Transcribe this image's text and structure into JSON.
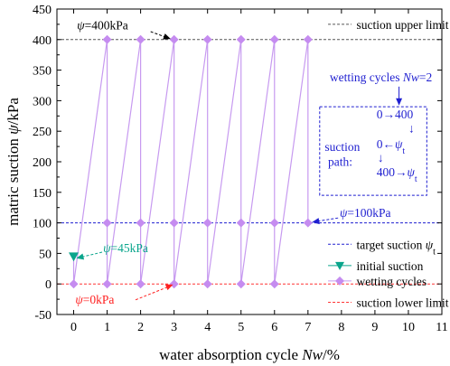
{
  "chart_data": {
    "type": "line",
    "xlabel_prefix": "water absorption cycle ",
    "xlabel_italic": "Nw",
    "xlabel_suffix": "/%",
    "ylabel_prefix": "matric suction ",
    "ylabel_italic": "ψ",
    "ylabel_suffix": "/kPa",
    "xlim": [
      -0.5,
      11
    ],
    "ylim": [
      -50,
      450
    ],
    "xticks": [
      0,
      1,
      2,
      3,
      4,
      5,
      6,
      7,
      8,
      9,
      10,
      11
    ],
    "yticks": [
      -50,
      0,
      50,
      100,
      150,
      200,
      250,
      300,
      350,
      400,
      450
    ],
    "reference_lines": [
      {
        "name": "suction upper limit",
        "y": 400,
        "color": "#555555"
      },
      {
        "name_prefix": "target suction ",
        "name_italic": "ψ",
        "name_sub": "t",
        "y": 100,
        "color": "#1f1fd0"
      },
      {
        "name": "suction lower limit",
        "y": 0,
        "color": "#ff3333"
      }
    ],
    "series": [
      {
        "name": "initial suction",
        "marker": "triangle-down",
        "color": "#0aa58c",
        "points": [
          [
            0,
            45
          ]
        ]
      },
      {
        "name": "wetting cycles",
        "marker": "diamond",
        "color": "#c58cf0",
        "line_color": "#c79af0",
        "points": [
          [
            0,
            45
          ],
          [
            0,
            0
          ],
          [
            1,
            400
          ],
          [
            1,
            100
          ],
          [
            1,
            0
          ],
          [
            2,
            400
          ],
          [
            2,
            100
          ],
          [
            2,
            0
          ],
          [
            3,
            400
          ],
          [
            3,
            100
          ],
          [
            3,
            0
          ],
          [
            4,
            400
          ],
          [
            4,
            100
          ],
          [
            4,
            0
          ],
          [
            5,
            400
          ],
          [
            5,
            100
          ],
          [
            5,
            0
          ],
          [
            6,
            400
          ],
          [
            6,
            100
          ],
          [
            6,
            0
          ],
          [
            7,
            400
          ],
          [
            7,
            100
          ]
        ]
      }
    ],
    "annotations": {
      "upper": {
        "italic": "ψ",
        "text": "=400kPa",
        "color": "#000000"
      },
      "target": {
        "italic": "ψ",
        "text": "=100kPa",
        "color": "#1f1fd0"
      },
      "initial": {
        "italic": "ψ",
        "text": "=45kPa",
        "color": "#0aa58c"
      },
      "lower": {
        "italic": "ψ",
        "text": "=0kPa",
        "color": "#ff2020"
      }
    },
    "inset": {
      "title_prefix": "wetting cycles ",
      "title_italic": "Nw",
      "title_suffix": "=2",
      "label_line1": "suction",
      "label_line2": "path:",
      "step1": "0→400",
      "step2_prefix": "0←",
      "step2_italic": "ψ",
      "step2_sub": "t",
      "step3_prefix": "400→",
      "step3_italic": "ψ",
      "step3_sub": "t",
      "down_arrow": "↓",
      "color": "#1f1fd0"
    },
    "grid": false,
    "legend_position": "right"
  }
}
